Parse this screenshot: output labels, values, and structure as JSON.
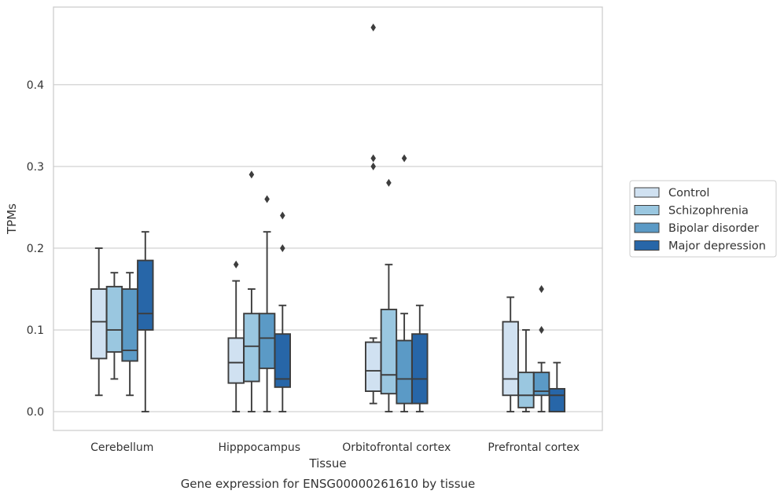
{
  "chart_data": {
    "type": "boxplot",
    "xlabel": "Tissue",
    "ylabel": "TPMs",
    "caption": "Gene expression for ENSG00000261610 by tissue",
    "ylim": [
      -0.023,
      0.495
    ],
    "yticks": [
      0.0,
      0.1,
      0.2,
      0.3,
      0.4
    ],
    "ytick_labels": [
      "0.0",
      "0.1",
      "0.2",
      "0.3",
      "0.4"
    ],
    "grid": "horizontal",
    "legend_position": "right",
    "categories": [
      "Cerebellum",
      "Hipppocampus",
      "Orbitofrontal cortex",
      "Prefrontal cortex"
    ],
    "series": [
      {
        "name": "Control",
        "color": "#d0e1f1",
        "boxes": [
          {
            "whislo": 0.02,
            "q1": 0.065,
            "med": 0.11,
            "q3": 0.15,
            "whishi": 0.2,
            "fliers": []
          },
          {
            "whislo": 0.0,
            "q1": 0.035,
            "med": 0.06,
            "q3": 0.09,
            "whishi": 0.16,
            "fliers": [
              0.18
            ]
          },
          {
            "whislo": 0.01,
            "q1": 0.025,
            "med": 0.05,
            "q3": 0.085,
            "whishi": 0.09,
            "fliers": [
              0.3,
              0.31,
              0.47
            ]
          },
          {
            "whislo": 0.0,
            "q1": 0.02,
            "med": 0.04,
            "q3": 0.11,
            "whishi": 0.14,
            "fliers": []
          }
        ]
      },
      {
        "name": "Schizophrenia",
        "color": "#9ac7e0",
        "boxes": [
          {
            "whislo": 0.04,
            "q1": 0.073,
            "med": 0.1,
            "q3": 0.153,
            "whishi": 0.17,
            "fliers": []
          },
          {
            "whislo": 0.0,
            "q1": 0.037,
            "med": 0.08,
            "q3": 0.12,
            "whishi": 0.15,
            "fliers": [
              0.29
            ]
          },
          {
            "whislo": 0.0,
            "q1": 0.022,
            "med": 0.045,
            "q3": 0.125,
            "whishi": 0.18,
            "fliers": [
              0.28
            ]
          },
          {
            "whislo": 0.0,
            "q1": 0.005,
            "med": 0.02,
            "q3": 0.048,
            "whishi": 0.1,
            "fliers": []
          }
        ]
      },
      {
        "name": "Bipolar disorder",
        "color": "#5b9ac6",
        "boxes": [
          {
            "whislo": 0.02,
            "q1": 0.062,
            "med": 0.075,
            "q3": 0.15,
            "whishi": 0.17,
            "fliers": []
          },
          {
            "whislo": 0.0,
            "q1": 0.053,
            "med": 0.09,
            "q3": 0.12,
            "whishi": 0.22,
            "fliers": [
              0.26
            ]
          },
          {
            "whislo": 0.0,
            "q1": 0.01,
            "med": 0.04,
            "q3": 0.087,
            "whishi": 0.12,
            "fliers": [
              0.31
            ]
          },
          {
            "whislo": 0.0,
            "q1": 0.02,
            "med": 0.025,
            "q3": 0.048,
            "whishi": 0.06,
            "fliers": [
              0.1,
              0.15
            ]
          }
        ]
      },
      {
        "name": "Major depression",
        "color": "#2766a8",
        "boxes": [
          {
            "whislo": 0.0,
            "q1": 0.1,
            "med": 0.12,
            "q3": 0.185,
            "whishi": 0.22,
            "fliers": []
          },
          {
            "whislo": 0.0,
            "q1": 0.03,
            "med": 0.04,
            "q3": 0.095,
            "whishi": 0.13,
            "fliers": [
              0.2,
              0.24
            ]
          },
          {
            "whislo": 0.0,
            "q1": 0.01,
            "med": 0.04,
            "q3": 0.095,
            "whishi": 0.13,
            "fliers": []
          },
          {
            "whislo": 0.0,
            "q1": 0.0,
            "med": 0.02,
            "q3": 0.028,
            "whishi": 0.06,
            "fliers": []
          }
        ]
      }
    ]
  }
}
